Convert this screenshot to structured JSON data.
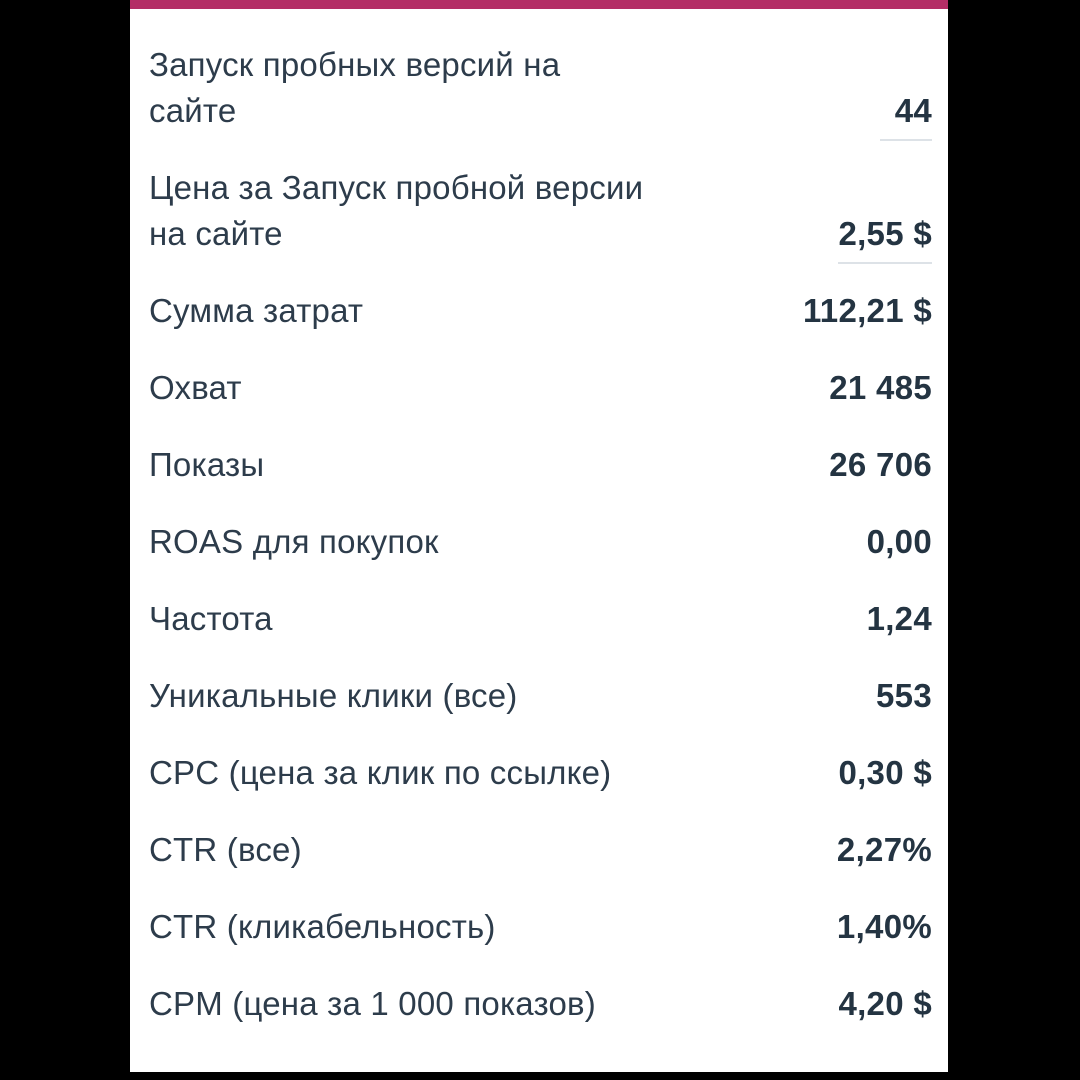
{
  "accent_color": "#b42e66",
  "background_color": "#000000",
  "panel_color": "#ffffff",
  "text_color": "#2d3c4b",
  "value_color": "#243442",
  "underline_color": "#dde2e7",
  "rows": [
    {
      "label": "Запуск пробных версий на\nсайте",
      "value": "44",
      "underline": true
    },
    {
      "label": "Цена за Запуск пробной версии\nна сайте",
      "value": "2,55 $",
      "underline": true
    },
    {
      "label": "Сумма затрат",
      "value": "112,21 $",
      "underline": false
    },
    {
      "label": "Охват",
      "value": "21 485",
      "underline": false
    },
    {
      "label": "Показы",
      "value": "26 706",
      "underline": false
    },
    {
      "label": "ROAS для покупок",
      "value": "0,00",
      "underline": false
    },
    {
      "label": "Частота",
      "value": "1,24",
      "underline": false
    },
    {
      "label": "Уникальные клики (все)",
      "value": "553",
      "underline": false
    },
    {
      "label": "CPC (цена за клик по ссылке)",
      "value": "0,30 $",
      "underline": false
    },
    {
      "label": "CTR (все)",
      "value": "2,27%",
      "underline": false
    },
    {
      "label": "CTR (кликабельность)",
      "value": "1,40%",
      "underline": false
    },
    {
      "label": "CPM (цена за 1 000 показов)",
      "value": "4,20 $",
      "underline": false
    }
  ]
}
